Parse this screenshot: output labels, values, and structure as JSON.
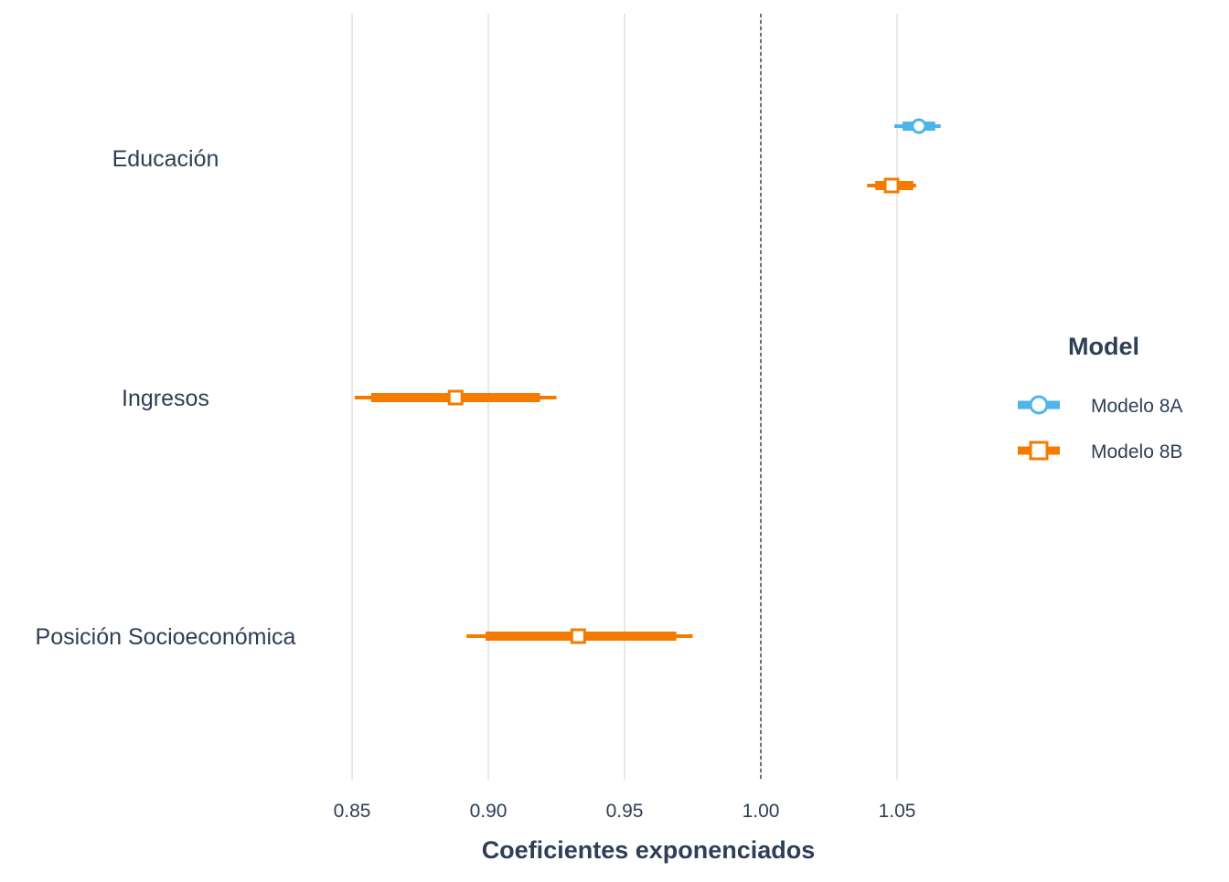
{
  "chart_data": {
    "type": "forest",
    "xlabel": "Coeficientes exponenciados",
    "xlim": [
      0.85,
      1.05
    ],
    "xticks": [
      "0.85",
      "0.90",
      "0.95",
      "1.00",
      "1.05"
    ],
    "xtick_values": [
      0.85,
      0.9,
      0.95,
      1.0,
      1.05
    ],
    "reference_line": 1.0,
    "grid": "vertical major gridlines",
    "terms": [
      "Educación",
      "Ingresos",
      "Posición Socioeconómica"
    ],
    "legend": {
      "title": "Model",
      "placement": "right"
    },
    "series": [
      {
        "name": "Modelo 8A",
        "color": "#4db5ea",
        "marker": "circle",
        "points": [
          {
            "term": "Educación",
            "estimate": 1.058,
            "ci_inner": [
              1.052,
              1.064
            ],
            "ci_outer": [
              1.049,
              1.066
            ]
          }
        ]
      },
      {
        "name": "Modelo 8B",
        "color": "#f57b00",
        "marker": "square",
        "points": [
          {
            "term": "Educación",
            "estimate": 1.048,
            "ci_inner": [
              1.042,
              1.056
            ],
            "ci_outer": [
              1.039,
              1.057
            ]
          },
          {
            "term": "Ingresos",
            "estimate": 0.888,
            "ci_inner": [
              0.857,
              0.919
            ],
            "ci_outer": [
              0.851,
              0.925
            ]
          },
          {
            "term": "Posición Socioeconómica",
            "estimate": 0.933,
            "ci_inner": [
              0.899,
              0.969
            ],
            "ci_outer": [
              0.892,
              0.975
            ]
          }
        ]
      }
    ]
  }
}
